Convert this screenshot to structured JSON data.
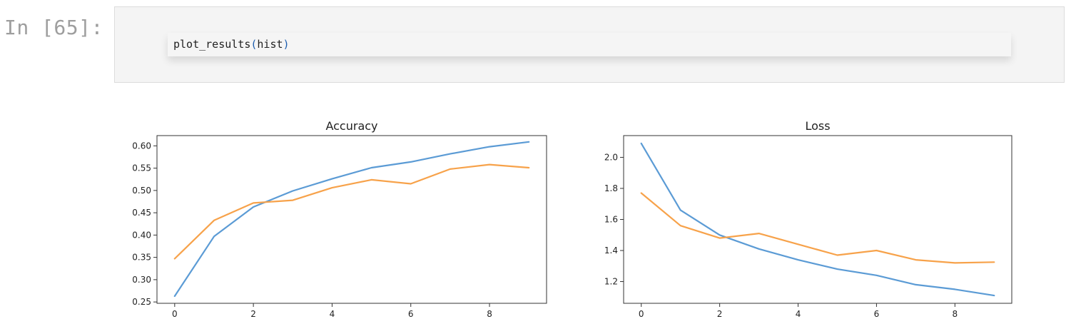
{
  "notebook": {
    "prompt": "In [65]:",
    "code": {
      "func": "plot_results",
      "open_paren": "(",
      "arg": "hist",
      "close_paren": ")"
    }
  },
  "colors": {
    "train": "#5b9bd5",
    "val": "#f7a24a"
  },
  "chart_data": [
    {
      "type": "line",
      "title": "Accuracy",
      "x": [
        0,
        1,
        2,
        3,
        4,
        5,
        6,
        7,
        8,
        9
      ],
      "xticks": [
        0,
        2,
        4,
        6,
        8
      ],
      "yticks": [
        0.25,
        0.3,
        0.35,
        0.4,
        0.45,
        0.5,
        0.55,
        0.6
      ],
      "ytick_labels": [
        "0.25",
        "0.30",
        "0.35",
        "0.40",
        "0.45",
        "0.50",
        "0.55",
        "0.60"
      ],
      "xlim": [
        -0.45,
        9.45
      ],
      "ylim": [
        0.247,
        0.623
      ],
      "legend": "none",
      "grid": false,
      "series": [
        {
          "color": "#5b9bd5",
          "values": [
            0.263,
            0.397,
            0.463,
            0.499,
            0.526,
            0.551,
            0.564,
            0.582,
            0.598,
            0.609
          ]
        },
        {
          "color": "#f7a24a",
          "values": [
            0.347,
            0.433,
            0.472,
            0.478,
            0.506,
            0.524,
            0.515,
            0.548,
            0.558,
            0.551
          ]
        }
      ]
    },
    {
      "type": "line",
      "title": "Loss",
      "x": [
        0,
        1,
        2,
        3,
        4,
        5,
        6,
        7,
        8,
        9
      ],
      "xticks": [
        0,
        2,
        4,
        6,
        8
      ],
      "yticks": [
        1.2,
        1.4,
        1.6,
        1.8,
        2.0
      ],
      "ytick_labels": [
        "1.2",
        "1.4",
        "1.6",
        "1.8",
        "2.0"
      ],
      "xlim": [
        -0.45,
        9.45
      ],
      "ylim": [
        1.06,
        2.14
      ],
      "legend": "none",
      "grid": false,
      "series": [
        {
          "color": "#5b9bd5",
          "values": [
            2.09,
            1.66,
            1.5,
            1.41,
            1.34,
            1.28,
            1.24,
            1.18,
            1.15,
            1.11
          ]
        },
        {
          "color": "#f7a24a",
          "values": [
            1.77,
            1.56,
            1.48,
            1.51,
            1.44,
            1.37,
            1.4,
            1.34,
            1.32,
            1.325
          ]
        }
      ]
    }
  ]
}
